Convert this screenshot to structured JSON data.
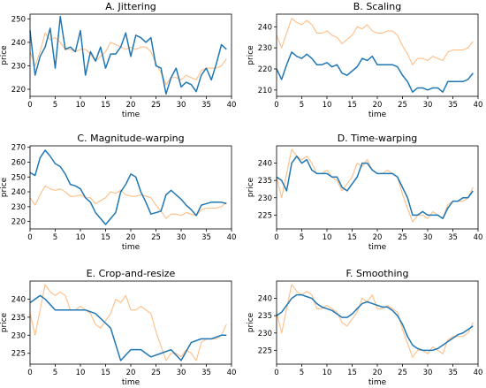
{
  "figure": {
    "colors": {
      "original": "#ffbe86",
      "augmented": "#1f77b4"
    }
  },
  "chart_data": [
    {
      "type": "line",
      "title": "A. Jittering",
      "xlabel": "time",
      "ylabel": "price",
      "xlim": [
        0,
        40
      ],
      "ylim": [
        217,
        252
      ],
      "xticks": [
        0,
        5,
        10,
        15,
        20,
        25,
        30,
        35,
        40
      ],
      "yticks": [
        220,
        230,
        240,
        250
      ],
      "series": [
        {
          "color": "#ffbe86",
          "role": "original",
          "x": [
            0,
            1,
            2,
            3,
            4,
            5,
            6,
            7,
            8,
            9,
            10,
            11,
            12,
            13,
            14,
            15,
            16,
            17,
            18,
            19,
            20,
            21,
            22,
            23,
            24,
            25,
            26,
            27,
            28,
            29,
            30,
            31,
            32,
            33,
            34,
            35,
            36,
            37,
            38,
            39
          ],
          "y": [
            236,
            230,
            236,
            244,
            241,
            242,
            240,
            237,
            237,
            236,
            237,
            237,
            235,
            232,
            234,
            236,
            240,
            239,
            238,
            237,
            238,
            237,
            238,
            238,
            236,
            231,
            227,
            222,
            225,
            225,
            224,
            226,
            225,
            224,
            228,
            229,
            229,
            229,
            230,
            233
          ]
        },
        {
          "color": "#1f77b4",
          "role": "augmented",
          "x": [
            0,
            1,
            2,
            3,
            4,
            5,
            6,
            7,
            8,
            9,
            10,
            11,
            12,
            13,
            14,
            15,
            16,
            17,
            18,
            19,
            20,
            21,
            22,
            23,
            24,
            25,
            26,
            27,
            28,
            29,
            30,
            31,
            32,
            33,
            34,
            35,
            36,
            37,
            38,
            39
          ],
          "y": [
            245,
            226,
            234,
            238,
            246,
            229,
            251,
            237,
            238,
            236,
            245,
            226,
            236,
            232,
            238,
            229,
            235,
            235,
            238,
            244,
            234,
            243,
            242,
            240,
            242,
            230,
            229,
            218,
            225,
            229,
            221,
            223,
            222,
            219,
            226,
            229,
            224,
            231,
            239,
            237
          ]
        }
      ]
    },
    {
      "type": "line",
      "title": "B. Scaling",
      "xlabel": "time",
      "ylabel": "price",
      "xlim": [
        0,
        40
      ],
      "ylim": [
        207,
        246
      ],
      "xticks": [
        0,
        5,
        10,
        15,
        20,
        25,
        30,
        35,
        40
      ],
      "yticks": [
        210,
        220,
        230,
        240
      ],
      "series": [
        {
          "color": "#ffbe86",
          "role": "original",
          "x": [
            0,
            1,
            2,
            3,
            4,
            5,
            6,
            7,
            8,
            9,
            10,
            11,
            12,
            13,
            14,
            15,
            16,
            17,
            18,
            19,
            20,
            21,
            22,
            23,
            24,
            25,
            26,
            27,
            28,
            29,
            30,
            31,
            32,
            33,
            34,
            35,
            36,
            37,
            38,
            39
          ],
          "y": [
            236,
            230,
            237,
            244,
            242,
            241,
            243,
            241,
            237,
            237,
            238,
            236,
            235,
            232,
            234,
            236,
            240,
            239,
            241,
            238,
            237,
            237,
            238,
            238,
            236,
            231,
            227,
            222,
            225,
            225,
            224,
            226,
            225,
            224,
            228,
            229,
            229,
            229,
            230,
            233
          ]
        },
        {
          "color": "#1f77b4",
          "role": "augmented",
          "x": [
            0,
            1,
            2,
            3,
            4,
            5,
            6,
            7,
            8,
            9,
            10,
            11,
            12,
            13,
            14,
            15,
            16,
            17,
            18,
            19,
            20,
            21,
            22,
            23,
            24,
            25,
            26,
            27,
            28,
            29,
            30,
            31,
            32,
            33,
            34,
            35,
            36,
            37,
            38,
            39
          ],
          "y": [
            220,
            215,
            222,
            228,
            226,
            225,
            227,
            225,
            222,
            222,
            223,
            221,
            222,
            218,
            217,
            219,
            221,
            225,
            224,
            226,
            222,
            222,
            222,
            222,
            221,
            217,
            214,
            209,
            211,
            211,
            210,
            211,
            211,
            209,
            214,
            214,
            214,
            214,
            215,
            218
          ]
        }
      ]
    },
    {
      "type": "line",
      "title": "C. Magnitude-warping",
      "xlabel": "time",
      "ylabel": "price",
      "xlim": [
        0,
        40
      ],
      "ylim": [
        215,
        271
      ],
      "xticks": [
        0,
        5,
        10,
        15,
        20,
        25,
        30,
        35,
        40
      ],
      "yticks": [
        220,
        230,
        240,
        250,
        260,
        270
      ],
      "series": [
        {
          "color": "#ffbe86",
          "role": "original",
          "x": [
            0,
            1,
            2,
            3,
            4,
            5,
            6,
            7,
            8,
            9,
            10,
            11,
            12,
            13,
            14,
            15,
            16,
            17,
            18,
            19,
            20,
            21,
            22,
            23,
            24,
            25,
            26,
            27,
            28,
            29,
            30,
            31,
            32,
            33,
            34,
            35,
            36,
            37,
            38,
            39
          ],
          "y": [
            236,
            231,
            238,
            244,
            242,
            241,
            242,
            240,
            237,
            237,
            238,
            236,
            236,
            232,
            234,
            236,
            240,
            239,
            241,
            238,
            237,
            237,
            238,
            237,
            236,
            231,
            227,
            222,
            225,
            225,
            224,
            226,
            225,
            224,
            228,
            229,
            229,
            229,
            230,
            233
          ]
        },
        {
          "color": "#1f77b4",
          "role": "augmented",
          "x": [
            0,
            1,
            2,
            3,
            4,
            5,
            6,
            7,
            8,
            9,
            10,
            11,
            12,
            13,
            14,
            15,
            16,
            17,
            18,
            19,
            20,
            21,
            22,
            23,
            24,
            25,
            26,
            27,
            28,
            29,
            30,
            31,
            32,
            33,
            34,
            35,
            36,
            37,
            38,
            39
          ],
          "y": [
            253,
            251,
            263,
            268,
            264,
            259,
            257,
            252,
            245,
            244,
            242,
            236,
            233,
            226,
            222,
            218,
            222,
            226,
            240,
            245,
            252,
            250,
            240,
            233,
            225,
            226,
            227,
            238,
            241,
            238,
            235,
            231,
            228,
            224,
            231,
            232,
            233,
            233,
            233,
            232
          ]
        }
      ]
    },
    {
      "type": "line",
      "title": "D. Time-warping",
      "xlabel": "time",
      "ylabel": "price",
      "xlim": [
        0,
        40
      ],
      "ylim": [
        221,
        245
      ],
      "xticks": [
        0,
        5,
        10,
        15,
        20,
        25,
        30,
        35,
        40
      ],
      "yticks": [
        225,
        230,
        235,
        240
      ],
      "series": [
        {
          "color": "#ffbe86",
          "role": "original",
          "x": [
            0,
            1,
            2,
            3,
            4,
            5,
            6,
            7,
            8,
            9,
            10,
            11,
            12,
            13,
            14,
            15,
            16,
            17,
            18,
            19,
            20,
            21,
            22,
            23,
            24,
            25,
            26,
            27,
            28,
            29,
            30,
            31,
            32,
            33,
            34,
            35,
            36,
            37,
            38,
            39
          ],
          "y": [
            236,
            230,
            237,
            244,
            242,
            241,
            242,
            240,
            237,
            237,
            238,
            236,
            235,
            232,
            234,
            236,
            240,
            239,
            241,
            238,
            237,
            237,
            238,
            237,
            236,
            231,
            227,
            223,
            225,
            225,
            224,
            226,
            225,
            224,
            228,
            229,
            229,
            229,
            230,
            233
          ]
        },
        {
          "color": "#1f77b4",
          "role": "augmented",
          "x": [
            0,
            1,
            2,
            3,
            4,
            5,
            6,
            7,
            8,
            9,
            10,
            11,
            12,
            13,
            14,
            15,
            16,
            17,
            18,
            19,
            20,
            21,
            22,
            23,
            24,
            25,
            26,
            27,
            28,
            29,
            30,
            31,
            32,
            33,
            34,
            35,
            36,
            37,
            38,
            39
          ],
          "y": [
            236,
            235,
            232,
            240,
            242,
            240,
            241,
            238,
            237,
            237,
            237,
            236,
            236,
            233,
            232,
            234,
            236,
            240,
            240,
            238,
            237,
            237,
            237,
            237,
            236,
            233,
            230,
            225,
            225,
            226,
            225,
            225,
            225,
            224,
            227,
            229,
            229,
            230,
            230,
            232
          ]
        }
      ]
    },
    {
      "type": "line",
      "title": "E. Crop-and-resize",
      "xlabel": "time",
      "ylabel": "price",
      "xlim": [
        0,
        40
      ],
      "ylim": [
        222,
        245
      ],
      "xticks": [
        0,
        5,
        10,
        15,
        20,
        25,
        30,
        35,
        40
      ],
      "yticks": [
        225,
        230,
        235,
        240
      ],
      "series": [
        {
          "color": "#ffbe86",
          "role": "original",
          "x": [
            0,
            1,
            2,
            3,
            4,
            5,
            6,
            7,
            8,
            9,
            10,
            11,
            12,
            13,
            14,
            15,
            16,
            17,
            18,
            19,
            20,
            21,
            22,
            23,
            24,
            25,
            26,
            27,
            28,
            29,
            30,
            31,
            32,
            33,
            34,
            35,
            36,
            37,
            38,
            39
          ],
          "y": [
            236,
            230,
            237,
            244,
            242,
            241,
            242,
            241,
            237,
            237,
            238,
            237,
            236,
            233,
            232,
            234,
            236,
            240,
            239,
            241,
            237,
            237,
            238,
            237,
            236,
            231,
            227,
            223,
            225,
            225,
            224,
            226,
            225,
            223,
            228,
            229,
            229,
            229,
            230,
            233
          ]
        },
        {
          "color": "#1f77b4",
          "role": "augmented",
          "x": [
            0,
            2,
            3,
            5,
            8,
            11,
            13,
            16,
            18,
            20,
            22,
            24,
            26,
            28,
            30,
            32,
            34,
            36,
            38,
            39
          ],
          "y": [
            239,
            241,
            240,
            237,
            237,
            237,
            236,
            232,
            223,
            226,
            226,
            224,
            225,
            226,
            223,
            228,
            229,
            229,
            230,
            230
          ]
        }
      ]
    },
    {
      "type": "line",
      "title": "F. Smoothing",
      "xlabel": "time",
      "ylabel": "price",
      "xlim": [
        0,
        40
      ],
      "ylim": [
        221,
        245
      ],
      "xticks": [
        0,
        5,
        10,
        15,
        20,
        25,
        30,
        35,
        40
      ],
      "yticks": [
        225,
        230,
        235,
        240
      ],
      "series": [
        {
          "color": "#ffbe86",
          "role": "original",
          "x": [
            0,
            1,
            2,
            3,
            4,
            5,
            6,
            7,
            8,
            9,
            10,
            11,
            12,
            13,
            14,
            15,
            16,
            17,
            18,
            19,
            20,
            21,
            22,
            23,
            24,
            25,
            26,
            27,
            28,
            29,
            30,
            31,
            32,
            33,
            34,
            35,
            36,
            37,
            38,
            39
          ],
          "y": [
            236,
            230,
            237,
            244,
            242,
            241,
            242,
            241,
            237,
            237,
            238,
            237,
            236,
            233,
            232,
            234,
            236,
            240,
            239,
            241,
            237,
            237,
            238,
            237,
            236,
            231,
            227,
            223,
            225,
            225,
            224,
            226,
            225,
            224,
            228,
            229,
            229,
            229,
            230,
            233
          ]
        },
        {
          "color": "#1f77b4",
          "role": "augmented",
          "x": [
            0,
            1,
            2,
            3,
            4,
            5,
            6,
            7,
            8,
            9,
            10,
            11,
            12,
            13,
            14,
            15,
            16,
            17,
            18,
            19,
            20,
            21,
            22,
            23,
            24,
            25,
            26,
            27,
            28,
            29,
            30,
            31,
            32,
            33,
            34,
            35,
            36,
            37,
            38,
            39
          ],
          "y": [
            235,
            236,
            238,
            240,
            241,
            241,
            240.5,
            240,
            238.5,
            237.5,
            237,
            236.5,
            235.5,
            234.5,
            234.5,
            235.5,
            237,
            238.5,
            239,
            238.5,
            238,
            237.5,
            237.5,
            236.5,
            235,
            232.5,
            229,
            226.5,
            225.5,
            225,
            225,
            225,
            225.5,
            226.5,
            227.5,
            228.5,
            229.5,
            230,
            231,
            232
          ]
        }
      ]
    }
  ]
}
